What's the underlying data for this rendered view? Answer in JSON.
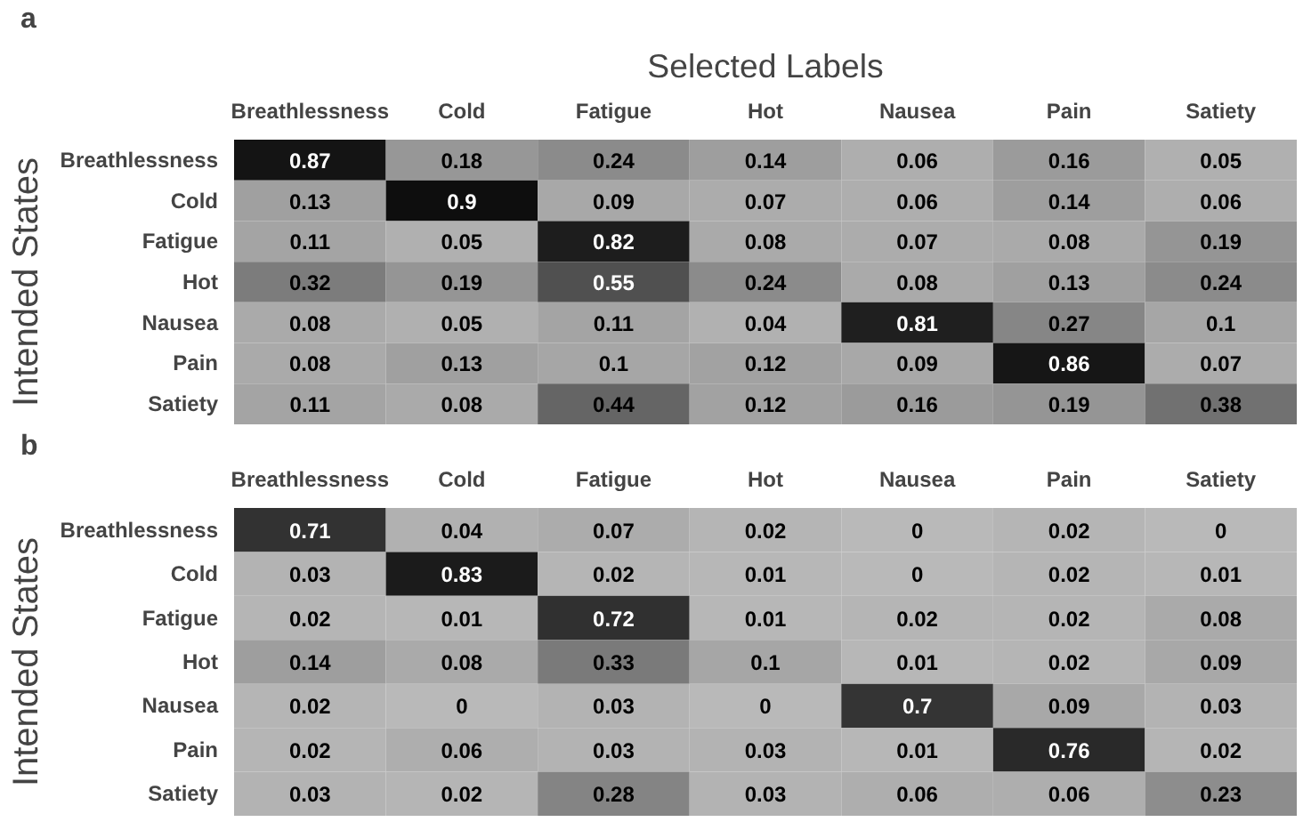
{
  "chart_data": [
    {
      "type": "heatmap",
      "title": "Selected Labels",
      "ylabel": "Intended States",
      "annotations": [
        "a"
      ],
      "data_labels": true,
      "categories": [
        "Breathlessness",
        "Cold",
        "Fatigue",
        "Hot",
        "Nausea",
        "Pain",
        "Satiety"
      ],
      "y_categories": [
        "Breathlessness",
        "Cold",
        "Fatigue",
        "Hot",
        "Nausea",
        "Pain",
        "Satiety"
      ],
      "cells": [
        [
          0.87,
          0.18,
          0.24,
          0.14,
          0.06,
          0.16,
          0.05
        ],
        [
          0.13,
          0.9,
          0.09,
          0.07,
          0.06,
          0.14,
          0.06
        ],
        [
          0.11,
          0.05,
          0.82,
          0.08,
          0.07,
          0.08,
          0.19
        ],
        [
          0.32,
          0.19,
          0.55,
          0.24,
          0.08,
          0.13,
          0.24
        ],
        [
          0.08,
          0.05,
          0.11,
          0.04,
          0.81,
          0.27,
          0.1
        ],
        [
          0.08,
          0.13,
          0.1,
          0.12,
          0.09,
          0.86,
          0.07
        ],
        [
          0.11,
          0.08,
          0.44,
          0.12,
          0.16,
          0.19,
          0.38
        ]
      ]
    },
    {
      "type": "heatmap",
      "ylabel": "Intended States",
      "annotations": [
        "b"
      ],
      "data_labels": true,
      "categories": [
        "Breathlessness",
        "Cold",
        "Fatigue",
        "Hot",
        "Nausea",
        "Pain",
        "Satiety"
      ],
      "y_categories": [
        "Breathlessness",
        "Cold",
        "Fatigue",
        "Hot",
        "Nausea",
        "Pain",
        "Satiety"
      ],
      "cells": [
        [
          0.71,
          0.04,
          0.07,
          0.02,
          0,
          0.02,
          0
        ],
        [
          0.03,
          0.83,
          0.02,
          0.01,
          0,
          0.02,
          0.01
        ],
        [
          0.02,
          0.01,
          0.72,
          0.01,
          0.02,
          0.02,
          0.08
        ],
        [
          0.14,
          0.08,
          0.33,
          0.1,
          0.01,
          0.02,
          0.09
        ],
        [
          0.02,
          0,
          0.03,
          0,
          0.7,
          0.09,
          0.03
        ],
        [
          0.02,
          0.06,
          0.03,
          0.03,
          0.01,
          0.76,
          0.02
        ],
        [
          0.03,
          0.02,
          0.28,
          0.03,
          0.06,
          0.06,
          0.23
        ]
      ]
    }
  ]
}
